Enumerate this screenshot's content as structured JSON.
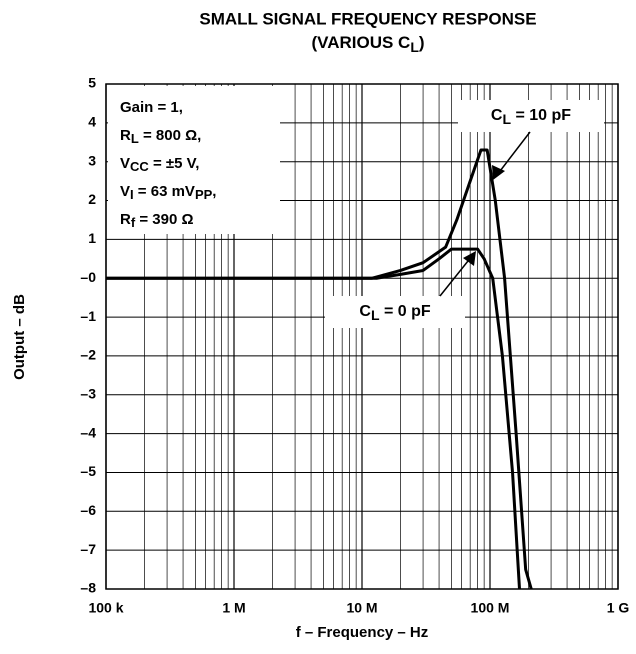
{
  "chart_data": {
    "type": "line",
    "title": "SMALL SIGNAL FREQUENCY RESPONSE",
    "subtitle": [
      "(VARIOUS C",
      "L",
      ")"
    ],
    "xlabel": "f – Frequency – Hz",
    "ylabel": "Output – dB",
    "xscale": "log",
    "grid": true,
    "xlim": [
      100000,
      1000000000
    ],
    "ylim": [
      -8,
      5
    ],
    "xticks": [
      {
        "value": 100000,
        "label": "100 k"
      },
      {
        "value": 1000000,
        "label": "1 M"
      },
      {
        "value": 10000000,
        "label": "10 M"
      },
      {
        "value": 100000000,
        "label": "100 M"
      },
      {
        "value": 1000000000,
        "label": "1 G"
      }
    ],
    "yticks": [
      5,
      4,
      3,
      2,
      1,
      {
        "value": 0,
        "label": "–0"
      },
      {
        "value": -1,
        "label": "–1"
      },
      {
        "value": -2,
        "label": "–2"
      },
      {
        "value": -3,
        "label": "–3"
      },
      {
        "value": -4,
        "label": "–4"
      },
      {
        "value": -5,
        "label": "–5"
      },
      {
        "value": -6,
        "label": "–6"
      },
      {
        "value": -7,
        "label": "–7"
      },
      {
        "value": -8,
        "label": "–8"
      }
    ],
    "conditions": [
      [
        "Gain = 1,"
      ],
      [
        "R",
        "L",
        " = 800 Ω,"
      ],
      [
        "V",
        "CC",
        " = ±5 V,"
      ],
      [
        "V",
        "I",
        " = 63 mV",
        "PP",
        ","
      ],
      [
        "R",
        "f",
        " = 390 Ω"
      ]
    ],
    "series": [
      {
        "name": [
          "C",
          "L",
          " = 10 pF"
        ],
        "color": "#000000",
        "x": [
          100000,
          12000000,
          20000000,
          30000000,
          45000000,
          55000000,
          70000000,
          85000000,
          95000000,
          110000000,
          130000000,
          160000000,
          190000000,
          210000000
        ],
        "values": [
          0,
          0,
          0.2,
          0.4,
          0.8,
          1.5,
          2.5,
          3.3,
          3.3,
          2,
          0,
          -4,
          -7.5,
          -8
        ]
      },
      {
        "name": [
          "C",
          "L",
          " = 0 pF"
        ],
        "color": "#000000",
        "x": [
          100000,
          13000000,
          20000000,
          30000000,
          40000000,
          50000000,
          80000000,
          90000000,
          105000000,
          125000000,
          150000000,
          170000000
        ],
        "values": [
          0,
          0,
          0.1,
          0.2,
          0.5,
          0.75,
          0.75,
          0.5,
          0,
          -2,
          -5,
          -8
        ]
      }
    ]
  }
}
